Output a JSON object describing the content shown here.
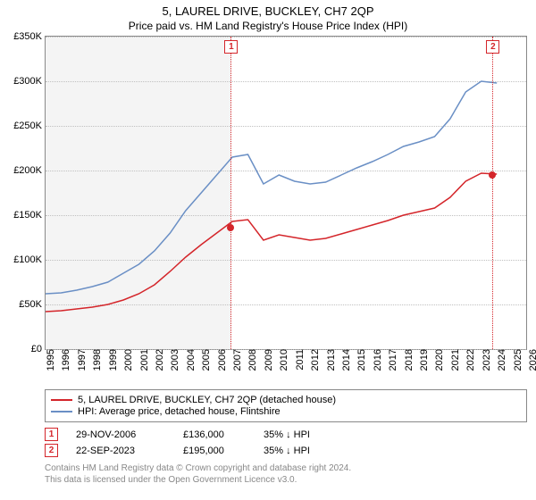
{
  "title": "5, LAUREL DRIVE, BUCKLEY, CH7 2QP",
  "subtitle": "Price paid vs. HM Land Registry's House Price Index (HPI)",
  "chart": {
    "type": "line",
    "ylim": [
      0,
      350000
    ],
    "ytick_step": 50000,
    "y_labels": [
      "£0",
      "£50K",
      "£100K",
      "£150K",
      "£200K",
      "£250K",
      "£300K",
      "£350K"
    ],
    "x_years": [
      1995,
      1996,
      1997,
      1998,
      1999,
      2000,
      2001,
      2002,
      2003,
      2004,
      2005,
      2006,
      2007,
      2008,
      2009,
      2010,
      2011,
      2012,
      2013,
      2014,
      2015,
      2016,
      2017,
      2018,
      2019,
      2020,
      2021,
      2022,
      2023,
      2024,
      2025,
      2026
    ],
    "x_visible_through": 2026,
    "now_year": 2024,
    "grid_color": "#c0c0c0",
    "background_before_first_sale": "#f4f4f4",
    "background_after": "#ffffff",
    "series": {
      "hpi": {
        "color": "#6a8fc5",
        "values_by_year": {
          "1995": 62000,
          "1996": 63000,
          "1997": 66000,
          "1998": 70000,
          "1999": 75000,
          "2000": 85000,
          "2001": 95000,
          "2002": 110000,
          "2003": 130000,
          "2004": 155000,
          "2005": 175000,
          "2006": 195000,
          "2007": 215000,
          "2008": 218000,
          "2009": 185000,
          "2010": 195000,
          "2011": 188000,
          "2012": 185000,
          "2013": 187000,
          "2014": 195000,
          "2015": 203000,
          "2016": 210000,
          "2017": 218000,
          "2018": 227000,
          "2019": 232000,
          "2020": 238000,
          "2021": 258000,
          "2022": 288000,
          "2023": 300000,
          "2024": 298000
        }
      },
      "paid": {
        "color": "#d4252a",
        "values_by_year": {
          "1995": 42000,
          "1996": 43000,
          "1997": 45000,
          "1998": 47000,
          "1999": 50000,
          "2000": 55000,
          "2001": 62000,
          "2002": 72000,
          "2003": 87000,
          "2004": 103000,
          "2005": 117000,
          "2006": 130000,
          "2007": 143000,
          "2008": 145000,
          "2009": 122000,
          "2010": 128000,
          "2011": 125000,
          "2012": 122000,
          "2013": 124000,
          "2014": 129000,
          "2015": 134000,
          "2016": 139000,
          "2017": 144000,
          "2018": 150000,
          "2019": 154000,
          "2020": 158000,
          "2021": 170000,
          "2022": 188000,
          "2023": 197000,
          "2024": 196000
        }
      }
    },
    "sale_markers": [
      {
        "label": "1",
        "year": 2006.91,
        "price": 136000,
        "color": "#d4252a"
      },
      {
        "label": "2",
        "year": 2023.73,
        "price": 195000,
        "color": "#d4252a"
      }
    ]
  },
  "legend": {
    "paid": "5, LAUREL DRIVE, BUCKLEY, CH7 2QP (detached house)",
    "hpi": "HPI: Average price, detached house, Flintshire"
  },
  "events": [
    {
      "label": "1",
      "date": "29-NOV-2006",
      "price": "£136,000",
      "delta": "35% ↓ HPI",
      "color": "#d4252a"
    },
    {
      "label": "2",
      "date": "22-SEP-2023",
      "price": "£195,000",
      "delta": "35% ↓ HPI",
      "color": "#d4252a"
    }
  ],
  "footer_line1": "Contains HM Land Registry data © Crown copyright and database right 2024.",
  "footer_line2": "This data is licensed under the Open Government Licence v3.0."
}
